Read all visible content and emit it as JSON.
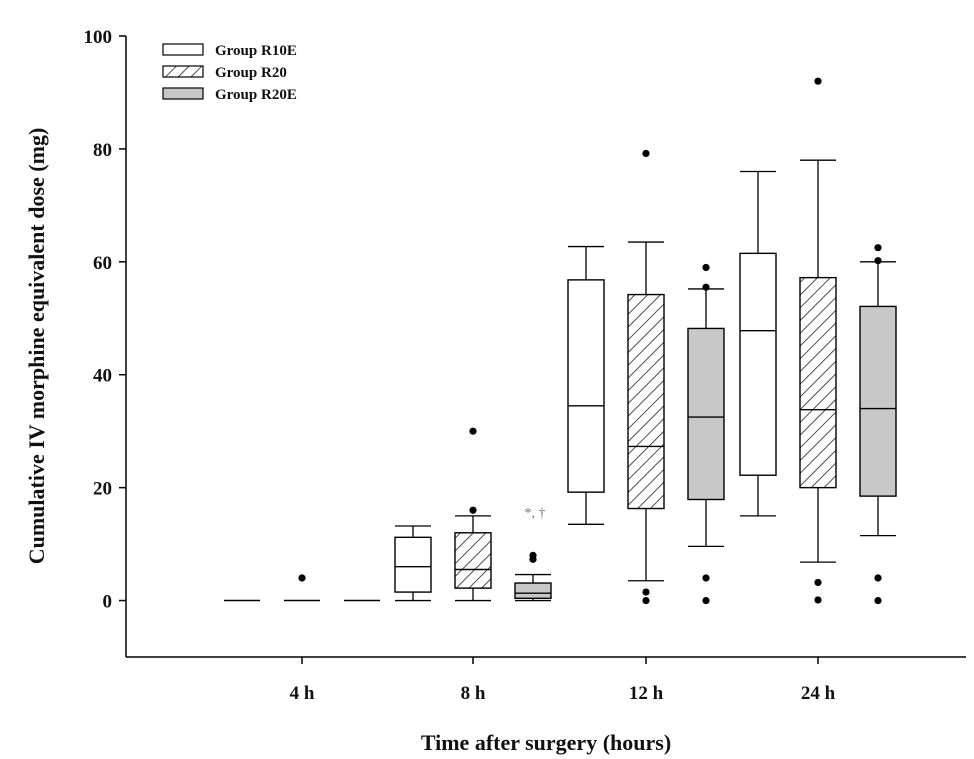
{
  "chart_data": {
    "type": "box",
    "title": "",
    "xlabel": "Time after surgery (hours)",
    "ylabel": "Cumulative IV morphine equivalent dose (mg)",
    "ylim": [
      -10,
      100
    ],
    "yticks": [
      0,
      20,
      40,
      60,
      80,
      100
    ],
    "grid": false,
    "legend_position": "top-left",
    "categories": [
      "4 h",
      "8 h",
      "12 h",
      "24 h"
    ],
    "series": [
      {
        "name": "Group R10E",
        "fill": "#ffffff",
        "pattern": "none",
        "boxes": [
          {
            "min": 0,
            "q1": 0,
            "median": 0,
            "q3": 0,
            "max": 0,
            "outliers": []
          },
          {
            "min": 0,
            "q1": 1.5,
            "median": 6,
            "q3": 11.2,
            "max": 13.2,
            "outliers": []
          },
          {
            "min": 13.5,
            "q1": 19.2,
            "median": 34.5,
            "q3": 56.8,
            "max": 62.7,
            "outliers": []
          },
          {
            "min": 15,
            "q1": 22.2,
            "median": 47.8,
            "q3": 61.5,
            "max": 76,
            "outliers": []
          }
        ]
      },
      {
        "name": "Group R20",
        "fill": "#ffffff",
        "pattern": "hatch",
        "boxes": [
          {
            "min": 0,
            "q1": 0,
            "median": 0,
            "q3": 0,
            "max": 0,
            "outliers": [
              4
            ]
          },
          {
            "min": 0,
            "q1": 2.2,
            "median": 5.5,
            "q3": 12,
            "max": 15,
            "outliers": [
              16,
              30
            ]
          },
          {
            "min": 3.5,
            "q1": 16.3,
            "median": 27.3,
            "q3": 54.2,
            "max": 63.5,
            "outliers": [
              0,
              1.5,
              79.2
            ]
          },
          {
            "min": 6.8,
            "q1": 20,
            "median": 33.8,
            "q3": 57.2,
            "max": 78,
            "outliers": [
              0.1,
              3.2,
              92
            ]
          }
        ]
      },
      {
        "name": "Group R20E",
        "fill": "#c8c8c8",
        "pattern": "none",
        "boxes": [
          {
            "min": 0,
            "q1": 0,
            "median": 0,
            "q3": 0,
            "max": 0,
            "outliers": []
          },
          {
            "min": 0,
            "q1": 0.4,
            "median": 1.3,
            "q3": 3.1,
            "max": 4.6,
            "outliers": [
              7.3,
              8
            ]
          },
          {
            "min": 9.6,
            "q1": 17.9,
            "median": 32.5,
            "q3": 48.2,
            "max": 55.2,
            "outliers": [
              0,
              4,
              55.5,
              59
            ]
          },
          {
            "min": 11.5,
            "q1": 18.5,
            "median": 34,
            "q3": 52.1,
            "max": 60,
            "outliers": [
              0,
              4,
              60.2,
              62.5
            ]
          }
        ]
      }
    ],
    "annotations": [
      {
        "text": "*, †",
        "category": "8 h",
        "series": 2,
        "y": 15.5
      }
    ]
  }
}
